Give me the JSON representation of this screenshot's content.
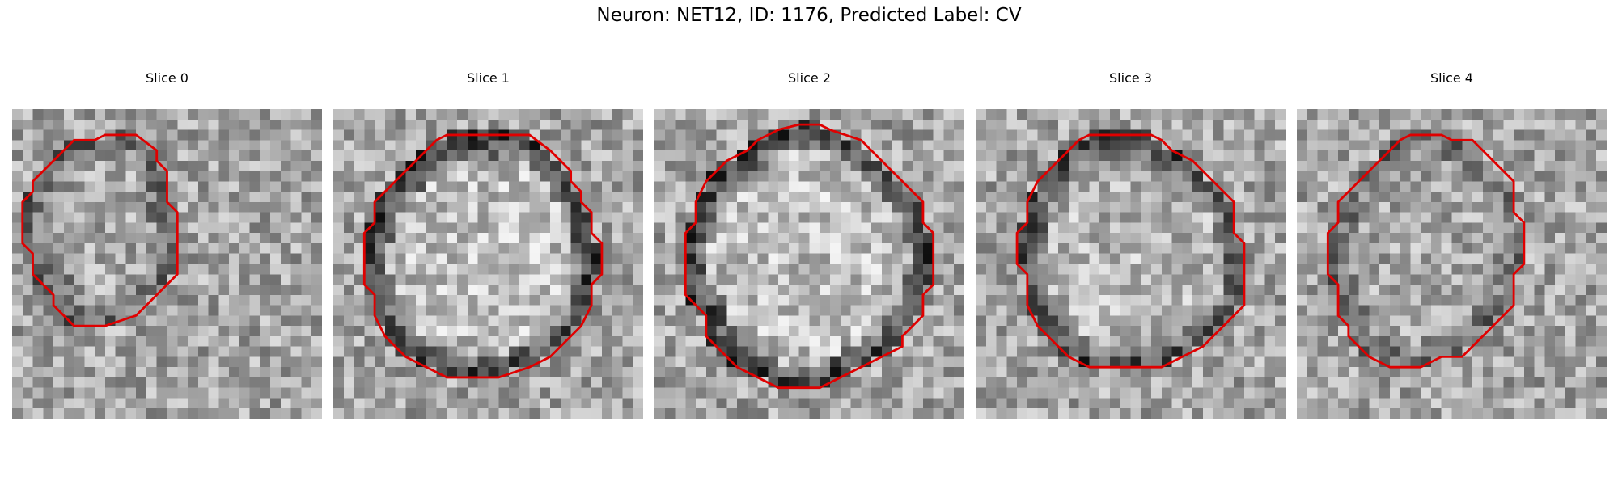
{
  "figure": {
    "title": "Neuron: NET12, ID: 1176, Predicted Label: CV",
    "contour_color": "#e00000",
    "panels": [
      {
        "label": "Slice 0",
        "contrast": "low"
      },
      {
        "label": "Slice 1",
        "contrast": "high"
      },
      {
        "label": "Slice 2",
        "contrast": "high"
      },
      {
        "label": "Slice 3",
        "contrast": "medium"
      },
      {
        "label": "Slice 4",
        "contrast": "low"
      }
    ]
  }
}
